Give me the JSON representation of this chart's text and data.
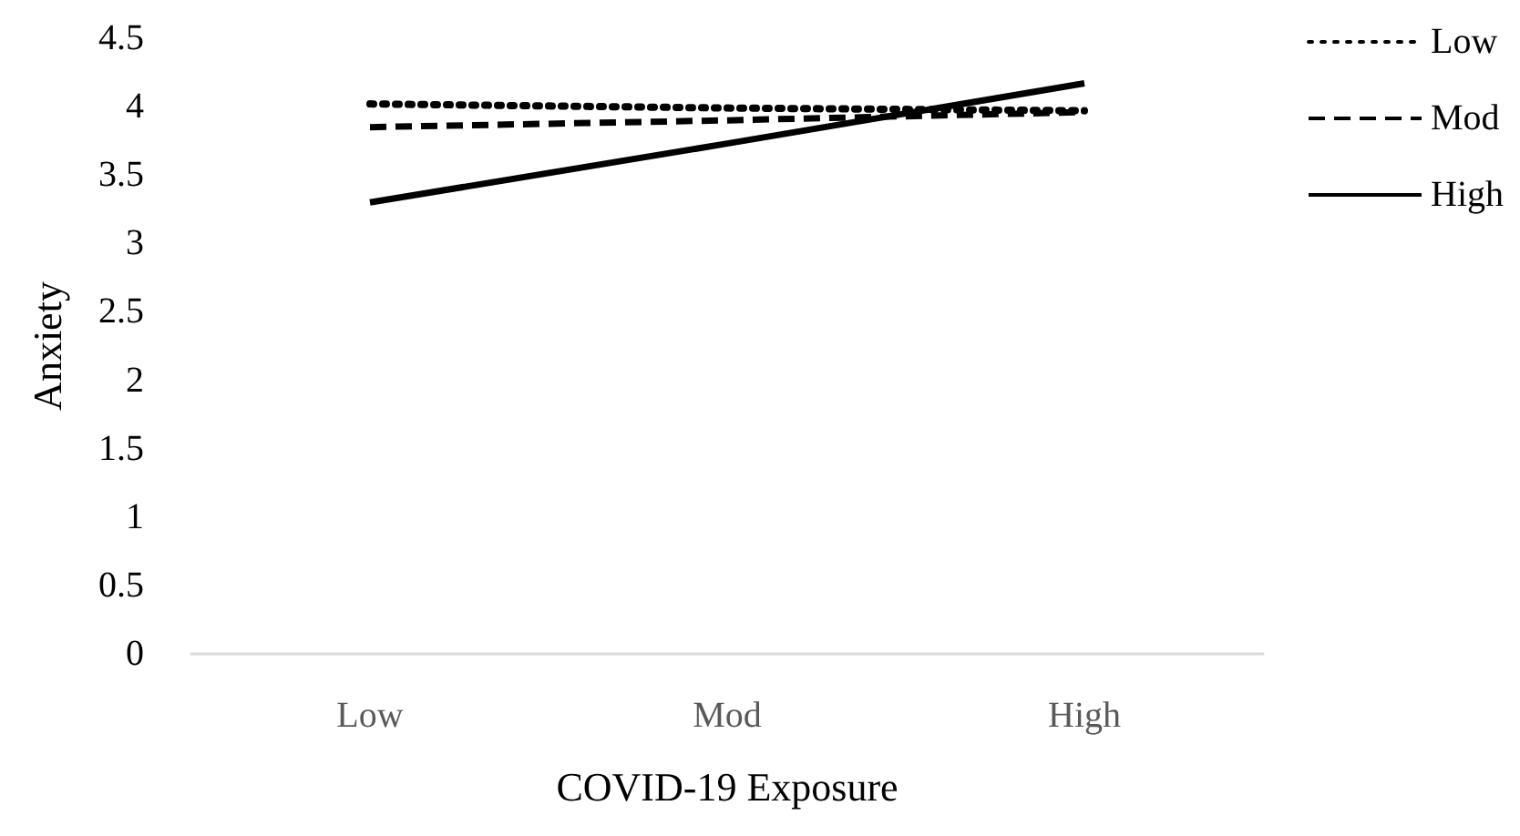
{
  "chart_data": {
    "type": "line",
    "xlabel": "COVID-19 Exposure",
    "ylabel": "Anxiety",
    "categories": [
      "Low",
      "Mod",
      "High"
    ],
    "series": [
      {
        "name": "Low",
        "color": "#000000",
        "line_style": "dotted",
        "values": [
          4.02,
          3.99,
          3.97
        ]
      },
      {
        "name": "Mod",
        "color": "#000000",
        "line_style": "dashed",
        "values": [
          3.85,
          3.9,
          3.96
        ]
      },
      {
        "name": "High",
        "color": "#000000",
        "line_style": "solid",
        "values": [
          3.3,
          3.73,
          4.17
        ]
      }
    ],
    "ylim": [
      0,
      4.5
    ],
    "yticks": [
      0,
      0.5,
      1,
      1.5,
      2,
      2.5,
      3,
      3.5,
      4,
      4.5
    ],
    "grid": false,
    "legend": "top right",
    "marker": "none"
  }
}
